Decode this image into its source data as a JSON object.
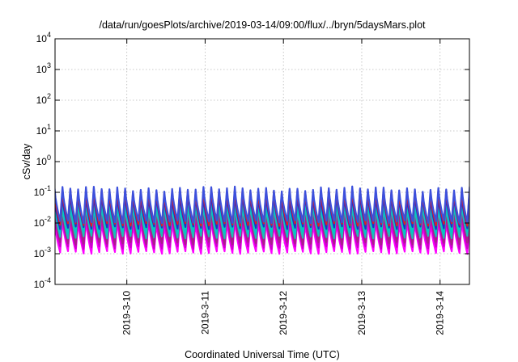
{
  "chart_data": {
    "type": "line",
    "title": "/data/run/goesPlots/archive/2019-03-14/09:00/flux/../bryn/5daysMars.plot",
    "xlabel": "Coordinated Universal Time (UTC)",
    "ylabel": "cSv/day",
    "yscale": "log",
    "ylim_exponents": [
      -4,
      4
    ],
    "y_ticks": [
      {
        "base": "10",
        "exp": "4"
      },
      {
        "base": "10",
        "exp": "3"
      },
      {
        "base": "10",
        "exp": "2"
      },
      {
        "base": "10",
        "exp": "1"
      },
      {
        "base": "10",
        "exp": "0"
      },
      {
        "base": "10",
        "exp": "-1"
      },
      {
        "base": "10",
        "exp": "-2"
      },
      {
        "base": "10",
        "exp": "-3"
      },
      {
        "base": "10",
        "exp": "-4"
      }
    ],
    "x_start": "2019-03-09T02:00",
    "x_end": "2019-03-14T09:00",
    "x_ticks": [
      {
        "label": "2019-3-10",
        "date": "2019-03-10T00:00"
      },
      {
        "label": "2019-3-11",
        "date": "2019-03-11T00:00"
      },
      {
        "label": "2019-3-12",
        "date": "2019-03-12T00:00"
      },
      {
        "label": "2019-3-13",
        "date": "2019-03-13T00:00"
      },
      {
        "label": "2019-3-14",
        "date": "2019-03-14T00:00"
      }
    ],
    "grid": true,
    "oscillation_period_hours": 2.4,
    "series": [
      {
        "color": "#ff00ff",
        "peak": 0.012,
        "trough": 0.0011
      },
      {
        "color": "#cc00cc",
        "peak": 0.018,
        "trough": 0.0016
      },
      {
        "color": "#aa1e8c",
        "peak": 0.025,
        "trough": 0.0022
      },
      {
        "color": "#1ebeb4",
        "peak": 0.04,
        "trough": 0.0035
      },
      {
        "color": "#00c8c8",
        "peak": 0.06,
        "trough": 0.005
      },
      {
        "color": "#2828c8",
        "peak": 0.08,
        "trough": 0.007
      },
      {
        "color": "#e02020",
        "peak": 0.11,
        "trough": 0.009
      },
      {
        "color": "#3c50dc",
        "peak": 0.13,
        "trough": 0.011
      }
    ]
  }
}
